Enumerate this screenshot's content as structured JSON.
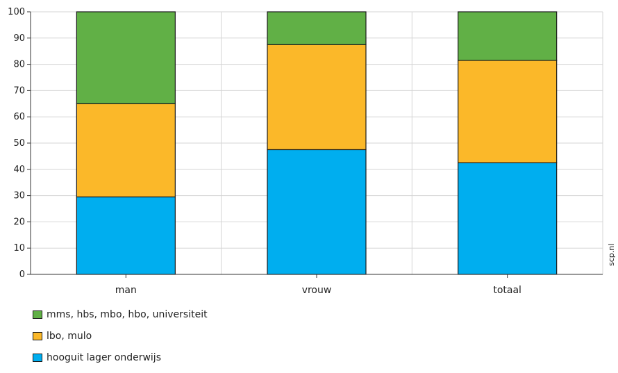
{
  "chart_data": {
    "type": "bar",
    "stacked": true,
    "categories": [
      "man",
      "vrouw",
      "totaal"
    ],
    "series": [
      {
        "name": "hooguit lager onderwijs",
        "color": "#00aeef",
        "values": [
          29.5,
          47.5,
          42.5
        ]
      },
      {
        "name": "lbo, mulo",
        "color": "#fbb829",
        "values": [
          35.5,
          40.0,
          39.0
        ]
      },
      {
        "name": "mms, hbs, mbo, hbo, universiteit",
        "color": "#61b046",
        "values": [
          35.0,
          12.5,
          18.5
        ]
      }
    ],
    "ylim": [
      0,
      100
    ],
    "yticks": [
      0,
      10,
      20,
      30,
      40,
      50,
      60,
      70,
      80,
      90,
      100
    ],
    "grid": true,
    "legend_position": "bottom-left",
    "legend_order": [
      "mms, hbs, mbo, hbo, universiteit",
      "lbo, mulo",
      "hooguit lager onderwijs"
    ],
    "xlabel": "",
    "ylabel": "",
    "title": ""
  },
  "watermark": "scp.nl"
}
